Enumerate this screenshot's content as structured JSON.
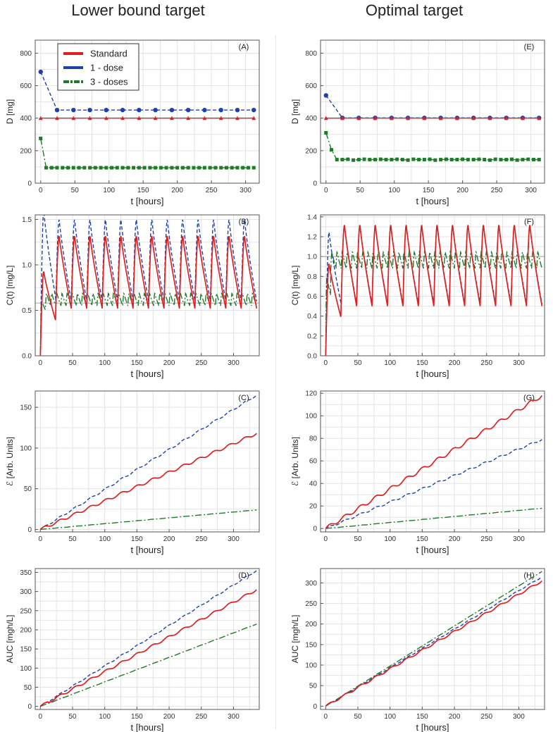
{
  "titles": {
    "left": "Lower bound target",
    "right": "Optimal target"
  },
  "colors": {
    "standard": "#e02020",
    "one_dose": "#2040a8",
    "three_doses": "#1f7a2a",
    "grid": "#e4e4e4",
    "axis": "#555555"
  },
  "legend": {
    "standard": "Standard",
    "one_dose": "1 - dose",
    "three_doses": "3 - doses"
  },
  "chart_data": [
    {
      "id": "A",
      "label": "(A)",
      "type": "line",
      "kind": "dose",
      "ylabel": "D [mg]",
      "xlabel": "t [hours]",
      "xlim": [
        -8,
        320
      ],
      "ylim": [
        0,
        880
      ],
      "xticks": [
        0,
        50,
        100,
        150,
        200,
        250,
        300
      ],
      "yticks": [
        0,
        200,
        400,
        600,
        800
      ],
      "series": [
        {
          "name": "Standard",
          "key": "standard",
          "dose_first": 400,
          "dose_rest": 400
        },
        {
          "name": "1 - dose",
          "key": "one_dose",
          "dose_first": 685,
          "dose_rest": 450
        },
        {
          "name": "3 - doses",
          "key": "three_doses",
          "dose_first": 275,
          "dose_rest": 95
        }
      ]
    },
    {
      "id": "B",
      "label": "(B)",
      "type": "line",
      "kind": "conc",
      "ylabel": "C(t) [mg/L]",
      "xlabel": "t [hours]",
      "xlim": [
        -8,
        340
      ],
      "ylim": [
        0,
        1.55
      ],
      "xticks": [
        0,
        50,
        100,
        150,
        200,
        250,
        300
      ],
      "yticks": [
        0.0,
        0.5,
        1.0,
        1.5
      ],
      "ytick_decimals": 1,
      "target_level": 0.58,
      "series": [
        {
          "name": "Standard",
          "key": "standard",
          "peak": 1.32,
          "trough": 0.52,
          "first_peak": 0.93,
          "first_trough": 0.38,
          "period": 24
        },
        {
          "name": "1 - dose",
          "key": "one_dose",
          "peak": 1.5,
          "trough": 0.6,
          "first_peak": 1.6,
          "first_trough": 0.62,
          "period": 24
        },
        {
          "name": "3 - doses",
          "key": "three_doses",
          "peak": 0.69,
          "trough": 0.55,
          "first_peak": 0.62,
          "first_trough": 0.5,
          "period": 8
        }
      ]
    },
    {
      "id": "C",
      "label": "(C)",
      "type": "line",
      "kind": "cum",
      "ylabel": "ℰ [Arb. Units]",
      "xlabel": "t [hours]",
      "xlim": [
        -8,
        340
      ],
      "ylim": [
        -3,
        170
      ],
      "xticks": [
        0,
        50,
        100,
        150,
        200,
        250,
        300
      ],
      "yticks": [
        0,
        50,
        100,
        150
      ],
      "series": [
        {
          "name": "Standard",
          "key": "standard",
          "end": 118,
          "wave": 1.6
        },
        {
          "name": "1 - dose",
          "key": "one_dose",
          "end": 165,
          "wave": 1.0
        },
        {
          "name": "3 - doses",
          "key": "three_doses",
          "end": 24,
          "wave": 0.1
        }
      ]
    },
    {
      "id": "D",
      "label": "(D)",
      "type": "line",
      "kind": "cum",
      "ylabel": "AUC [mgh/L]",
      "xlabel": "t [hours]",
      "xlim": [
        -8,
        340
      ],
      "ylim": [
        -8,
        360
      ],
      "xticks": [
        0,
        50,
        100,
        150,
        200,
        250,
        300
      ],
      "yticks": [
        0,
        50,
        100,
        150,
        200,
        250,
        300,
        350
      ],
      "series": [
        {
          "name": "Standard",
          "key": "standard",
          "end": 305,
          "wave": 3.0
        },
        {
          "name": "1 - dose",
          "key": "one_dose",
          "end": 355,
          "wave": 1.5
        },
        {
          "name": "3 - doses",
          "key": "three_doses",
          "end": 215,
          "wave": 0.3
        }
      ]
    },
    {
      "id": "E",
      "label": "(E)",
      "type": "line",
      "kind": "dose",
      "ylabel": "D [mg]",
      "xlabel": "t [hours]",
      "xlim": [
        -8,
        320
      ],
      "ylim": [
        0,
        880
      ],
      "xticks": [
        0,
        50,
        100,
        150,
        200,
        250,
        300
      ],
      "yticks": [
        0,
        200,
        400,
        600,
        800
      ],
      "series": [
        {
          "name": "Standard",
          "key": "standard",
          "dose_first": 400,
          "dose_rest": 400
        },
        {
          "name": "1 - dose",
          "key": "one_dose",
          "dose_first": 540,
          "dose_rest": 402
        },
        {
          "name": "3 - doses",
          "key": "three_doses",
          "dose_first": 310,
          "dose_second": 205,
          "dose_rest": 145
        }
      ]
    },
    {
      "id": "F",
      "label": "(F)",
      "type": "line",
      "kind": "conc",
      "ylabel": "C(t) [mg/L]",
      "xlabel": "t [hours]",
      "xlim": [
        -8,
        340
      ],
      "ylim": [
        0,
        1.42
      ],
      "xticks": [
        0,
        50,
        100,
        150,
        200,
        250,
        300
      ],
      "yticks": [
        0.0,
        0.2,
        0.4,
        0.6,
        0.8,
        1.0,
        1.2,
        1.4
      ],
      "ytick_decimals": 1,
      "target_level": 1.0,
      "series": [
        {
          "name": "Standard",
          "key": "standard",
          "peak": 1.32,
          "trough": 0.5,
          "first_peak": 0.93,
          "first_trough": 0.38,
          "period": 24
        },
        {
          "name": "1 - dose",
          "key": "one_dose",
          "peak": 1.32,
          "trough": 0.52,
          "first_peak": 1.25,
          "first_trough": 0.52,
          "period": 24
        },
        {
          "name": "3 - doses",
          "key": "three_doses",
          "peak": 1.05,
          "trough": 0.88,
          "first_peak": 0.8,
          "first_trough": 0.6,
          "period": 8
        }
      ]
    },
    {
      "id": "G",
      "label": "(G)",
      "type": "line",
      "kind": "cum",
      "ylabel": "ℰ [Arb. Units]",
      "xlabel": "t [hours]",
      "xlim": [
        -8,
        340
      ],
      "ylim": [
        -3,
        122
      ],
      "xticks": [
        0,
        50,
        100,
        150,
        200,
        250,
        300
      ],
      "yticks": [
        0,
        20,
        40,
        60,
        80,
        100,
        120
      ],
      "series": [
        {
          "name": "Standard",
          "key": "standard",
          "end": 118,
          "wave": 1.6
        },
        {
          "name": "1 - dose",
          "key": "one_dose",
          "end": 79,
          "wave": 0.8
        },
        {
          "name": "3 - doses",
          "key": "three_doses",
          "end": 18,
          "wave": 0.1
        }
      ]
    },
    {
      "id": "H",
      "label": "(H)",
      "type": "line",
      "kind": "cum",
      "ylabel": "AUC [mgh/L]",
      "xlabel": "t [hours]",
      "xlim": [
        -8,
        340
      ],
      "ylim": [
        -8,
        335
      ],
      "xticks": [
        0,
        50,
        100,
        150,
        200,
        250,
        300
      ],
      "yticks": [
        0,
        50,
        100,
        150,
        200,
        250,
        300
      ],
      "series": [
        {
          "name": "Standard",
          "key": "standard",
          "end": 305,
          "wave": 2.5
        },
        {
          "name": "1 - dose",
          "key": "one_dose",
          "end": 315,
          "wave": 1.2
        },
        {
          "name": "3 - doses",
          "key": "three_doses",
          "end": 328,
          "wave": 0.2
        }
      ]
    }
  ]
}
